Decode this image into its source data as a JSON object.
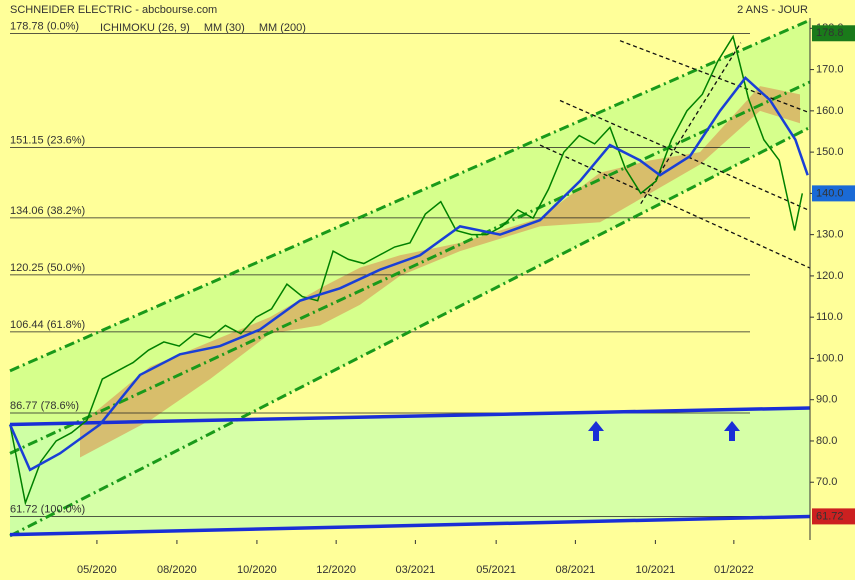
{
  "chart_data": {
    "type": "line",
    "title": "SCHNEIDER ELECTRIC - abcbourse.com",
    "subtitle": "2 ANS - JOUR",
    "legend": [
      {
        "name": "ICHIMOKU (26, 9)",
        "color": "#0000cc"
      },
      {
        "name": "MM (30)",
        "color": "#0000cc"
      },
      {
        "name": "MM (200)",
        "color": "#cc0000"
      }
    ],
    "xlim": [
      0,
      104
    ],
    "ylim": [
      56,
      182.5
    ],
    "xticks": [
      {
        "value": 11.3,
        "label": "05/2020"
      },
      {
        "value": 21.7,
        "label": "08/2020"
      },
      {
        "value": 32.1,
        "label": "10/2020"
      },
      {
        "value": 42.4,
        "label": "12/2020"
      },
      {
        "value": 52.7,
        "label": "03/2021"
      },
      {
        "value": 63.2,
        "label": "05/2021"
      },
      {
        "value": 73.5,
        "label": "08/2021"
      },
      {
        "value": 83.9,
        "label": "10/2021"
      },
      {
        "value": 94.1,
        "label": "01/2022"
      }
    ],
    "yticks": [
      {
        "value": 70,
        "label": "70.0"
      },
      {
        "value": 80,
        "label": "80.0"
      },
      {
        "value": 90,
        "label": "90.0"
      },
      {
        "value": 100,
        "label": "100.0"
      },
      {
        "value": 110,
        "label": "110.0"
      },
      {
        "value": 120,
        "label": "120.0"
      },
      {
        "value": 130,
        "label": "130.0"
      },
      {
        "value": 140,
        "label": "140.0"
      },
      {
        "value": 150,
        "label": "150.0"
      },
      {
        "value": 160,
        "label": "160.0"
      },
      {
        "value": 170,
        "label": "170.0"
      },
      {
        "value": 180,
        "label": "180.0"
      }
    ],
    "series": [
      {
        "color": "#008000",
        "x": [
          0,
          2,
          4,
          6,
          8,
          10,
          12,
          14,
          16,
          18,
          20,
          22,
          24,
          26,
          28,
          30,
          32,
          34,
          36,
          38,
          40,
          42,
          44,
          46,
          48,
          50,
          52,
          54,
          56,
          58,
          60,
          62,
          64,
          66,
          68,
          70,
          72,
          74,
          76,
          78,
          80,
          82,
          84,
          86,
          88,
          90,
          92,
          94,
          96,
          98,
          100,
          102,
          103
        ],
        "values": [
          84,
          65,
          75,
          80,
          82,
          85,
          95,
          97,
          99,
          102,
          104,
          103,
          106,
          105,
          108,
          106,
          110,
          112,
          118,
          115,
          114,
          126,
          124,
          123,
          125,
          127,
          128,
          135,
          138,
          131,
          130,
          130,
          132,
          136,
          134,
          141,
          150,
          154,
          152,
          156,
          146,
          140,
          143,
          153,
          160,
          164,
          172,
          178,
          163,
          153,
          148,
          131,
          140
        ]
      },
      {
        "name": "MM (30)",
        "color": "#1a3fd6",
        "x": [
          0,
          2.6,
          6.5,
          11.7,
          16.9,
          22.1,
          27.3,
          32.5,
          37.7,
          42.9,
          48.1,
          53.3,
          58.5,
          63.7,
          68.9,
          74.1,
          78,
          81.9,
          84.5,
          88.4,
          92.3,
          95.6,
          98.8,
          102.1,
          103.7
        ],
        "values": [
          84,
          73,
          77,
          84,
          96,
          101,
          103,
          107,
          114,
          117,
          121.5,
          125,
          132,
          130,
          133.5,
          143,
          151.7,
          148,
          144.4,
          149,
          160,
          168,
          162.6,
          153,
          144.4
        ]
      }
    ],
    "cloud": {
      "color": "#d8a860",
      "x": [
        9.1,
        18.2,
        26,
        33.8,
        40.3,
        45.5,
        50.7,
        58.5,
        68.9,
        76.7,
        83.2,
        89.7,
        97.5,
        102.7
      ],
      "top": [
        84,
        98,
        104,
        110,
        117,
        122,
        125,
        128,
        134,
        145,
        148,
        150,
        166,
        164
      ],
      "bottom": [
        76,
        85,
        95,
        106,
        108,
        113,
        120,
        126,
        132,
        133,
        140,
        147,
        160,
        157
      ]
    },
    "fib_levels": [
      {
        "value": 178.78,
        "label": "178.78  (0.0%)"
      },
      {
        "value": 151.15,
        "label": "151.15  (23.6%)"
      },
      {
        "value": 134.06,
        "label": "134.06  (38.2%)"
      },
      {
        "value": 120.25,
        "label": "120.25  (50.0%)"
      },
      {
        "value": 106.44,
        "label": "106.44  (61.8%)"
      },
      {
        "value": 86.77,
        "label": "86.77  (78.6%)"
      },
      {
        "value": 61.72,
        "label": "61.72  (100.0%)"
      }
    ],
    "channel": {
      "color": "#1a9a1a",
      "fill": "#ccff88",
      "lines": [
        [
          0,
          97,
          104,
          182
        ],
        [
          0,
          77,
          104,
          167
        ],
        [
          0,
          57,
          104,
          156
        ]
      ]
    },
    "supports": {
      "color": "#1a2fd6",
      "lines": [
        [
          0,
          84,
          104,
          88
        ],
        [
          0,
          57.3,
          104,
          61.7
        ]
      ]
    },
    "trend_lines": [
      [
        68.9,
        151.7,
        104,
        121.9
      ],
      [
        71.5,
        162.5,
        104,
        135.8
      ],
      [
        79.3,
        177,
        104,
        159.5
      ],
      [
        82,
        137.5,
        95,
        176.5
      ]
    ],
    "price_tags": [
      {
        "value": 178.8,
        "label": "178.8",
        "color": "#1a7a1a"
      },
      {
        "value": 140,
        "label": "140.0",
        "color": "#1a6ad6"
      },
      {
        "value": 61.72,
        "label": "61.72",
        "color": "#cc2020"
      }
    ]
  }
}
